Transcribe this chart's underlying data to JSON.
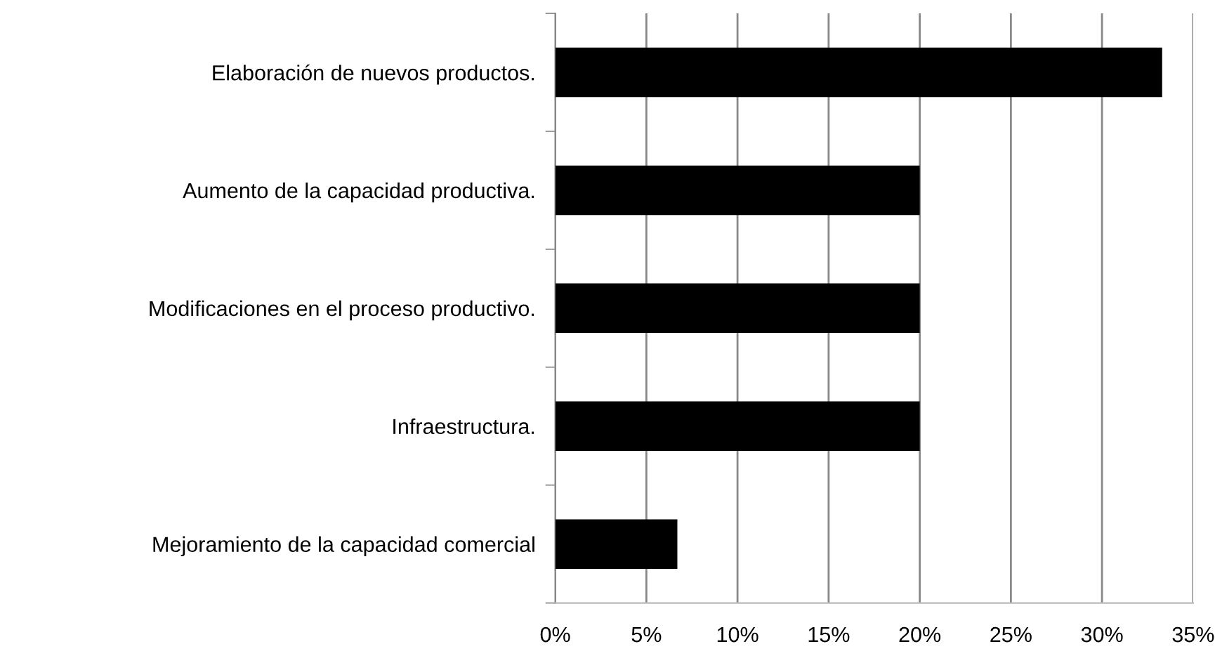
{
  "chart_data": {
    "type": "bar",
    "orientation": "horizontal",
    "categories": [
      "Elaboración de nuevos productos.",
      "Aumento de la capacidad productiva.",
      "Modificaciones en el proceso productivo.",
      "Infraestructura.",
      "Mejoramiento de la capacidad comercial"
    ],
    "values": [
      33.3,
      20,
      20,
      20,
      6.7
    ],
    "color": "#000000",
    "xlim": [
      0,
      35
    ],
    "xticks": [
      {
        "value": 0,
        "label": "0%"
      },
      {
        "value": 5,
        "label": "5%"
      },
      {
        "value": 10,
        "label": "10%"
      },
      {
        "value": 15,
        "label": "15%"
      },
      {
        "value": 20,
        "label": "20%"
      },
      {
        "value": 25,
        "label": "25%"
      },
      {
        "value": 30,
        "label": "30%"
      },
      {
        "value": 35,
        "label": "35%"
      }
    ],
    "grid": "x",
    "legend": false
  }
}
